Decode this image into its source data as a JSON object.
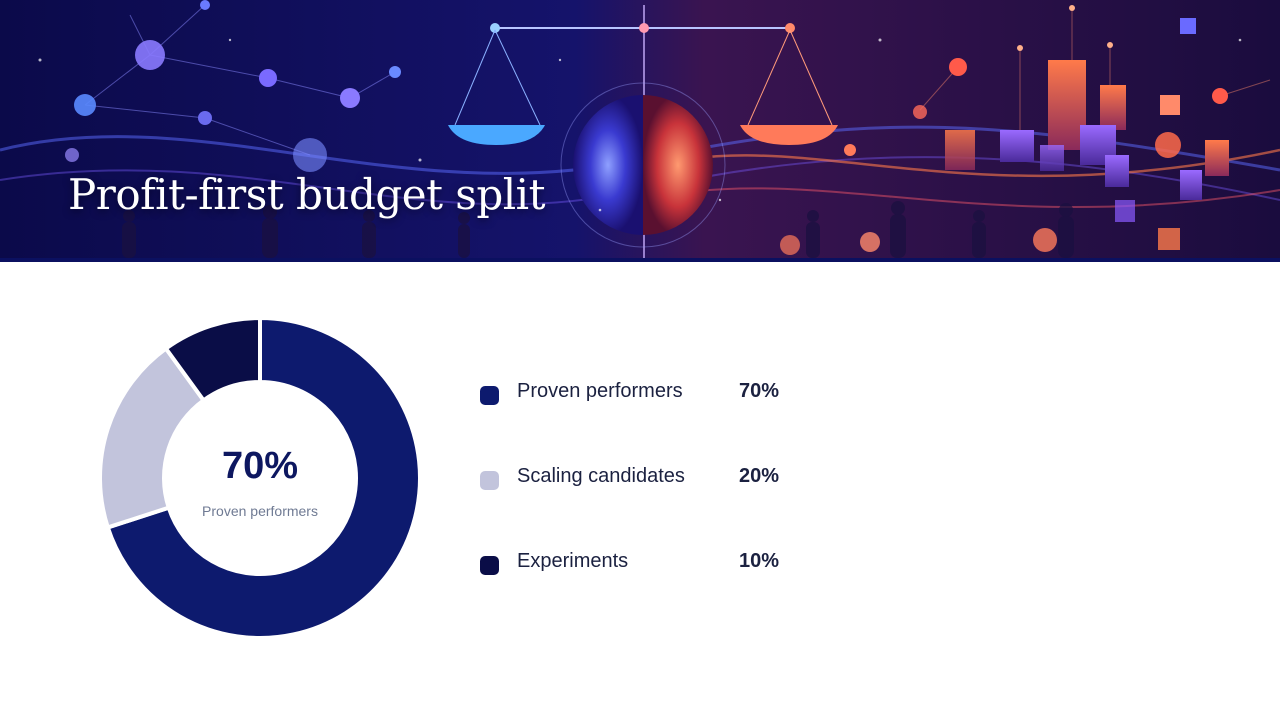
{
  "slide": {
    "title": "Profit-first budget split"
  },
  "colors": {
    "proven": "#0d1a6e",
    "scaling": "#c2c4dc",
    "experiments": "#0a0d47",
    "text": "#1b2140",
    "banner_bg": "#0b0a4a"
  },
  "chart_data": {
    "type": "pie",
    "donut": true,
    "center_value": "70%",
    "center_label": "Proven performers",
    "categories": [
      "Proven performers",
      "Scaling candidates",
      "Experiments"
    ],
    "values": [
      70,
      20,
      10
    ],
    "value_labels": [
      "70%",
      "20%",
      "10%"
    ],
    "colors": [
      "#0d1a6e",
      "#c2c4dc",
      "#0a0d47"
    ],
    "legend_position": "right"
  }
}
